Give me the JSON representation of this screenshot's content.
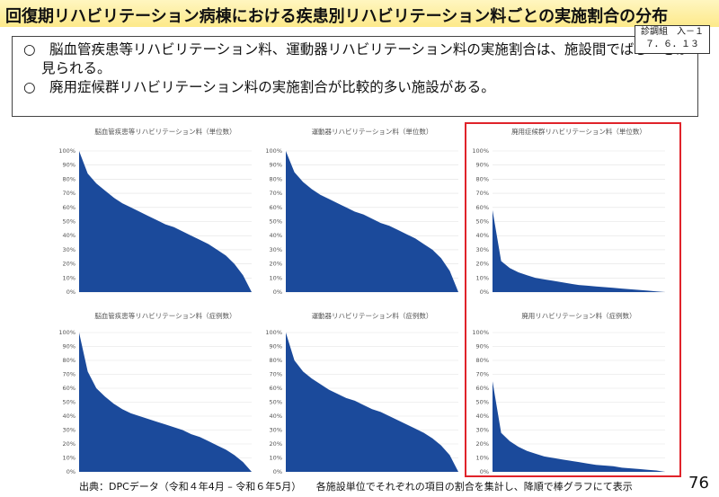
{
  "header": {
    "title": "回復期リハビリテーション病棟における疾患別リハビリテーション料ごとの実施割合の分布",
    "code": "診調組　入－１",
    "date": "７．６．１３"
  },
  "bullets": [
    "○　脳血管疾患等リハビリテーション料、運動器リハビリテーション料の実施割合は、施設間でばらつきが見られる。",
    "○　廃用症候群リハビリテーション料の実施割合が比較的多い施設がある。"
  ],
  "chart_data": [
    {
      "type": "area",
      "title": "脳血管疾患等リハビリテーション料（単位数）",
      "color": "#1b4a9b",
      "grid": true,
      "categories": [
        null,
        null,
        null,
        null,
        null,
        null,
        null,
        null,
        null,
        null,
        null,
        null,
        null,
        null,
        null,
        null,
        null,
        null,
        null,
        null,
        null
      ],
      "values": [
        100,
        84,
        77,
        72,
        67,
        63,
        60,
        57,
        54,
        51,
        48,
        46,
        43,
        40,
        37,
        34,
        30,
        26,
        20,
        12,
        0
      ],
      "ylim": [
        0,
        100
      ],
      "yticks": [
        {
          "value": 0,
          "label": "0%"
        },
        {
          "value": 10,
          "label": "10%"
        },
        {
          "value": 20,
          "label": "20%"
        },
        {
          "value": 30,
          "label": "30%"
        },
        {
          "value": 40,
          "label": "40%"
        },
        {
          "value": 50,
          "label": "50%"
        },
        {
          "value": 60,
          "label": "60%"
        },
        {
          "value": 70,
          "label": "70%"
        },
        {
          "value": 80,
          "label": "80%"
        },
        {
          "value": 90,
          "label": "90%"
        },
        {
          "value": 100,
          "label": "100%"
        }
      ]
    },
    {
      "type": "area",
      "title": "運動器リハビリテーション料（単位数）",
      "color": "#1b4a9b",
      "grid": true,
      "categories": [
        null,
        null,
        null,
        null,
        null,
        null,
        null,
        null,
        null,
        null,
        null,
        null,
        null,
        null,
        null,
        null,
        null,
        null,
        null,
        null,
        null
      ],
      "values": [
        100,
        85,
        78,
        73,
        69,
        66,
        63,
        60,
        57,
        55,
        52,
        49,
        47,
        44,
        41,
        38,
        34,
        30,
        24,
        15,
        0
      ],
      "ylim": [
        0,
        100
      ],
      "yticks": [
        {
          "value": 0,
          "label": "0%"
        },
        {
          "value": 10,
          "label": "10%"
        },
        {
          "value": 20,
          "label": "20%"
        },
        {
          "value": 30,
          "label": "30%"
        },
        {
          "value": 40,
          "label": "40%"
        },
        {
          "value": 50,
          "label": "50%"
        },
        {
          "value": 60,
          "label": "60%"
        },
        {
          "value": 70,
          "label": "70%"
        },
        {
          "value": 80,
          "label": "80%"
        },
        {
          "value": 90,
          "label": "90%"
        },
        {
          "value": 100,
          "label": "100%"
        }
      ]
    },
    {
      "type": "area",
      "title": "廃用症候群リハビリテーション料（単位数）",
      "color": "#1b4a9b",
      "grid": true,
      "categories": [
        null,
        null,
        null,
        null,
        null,
        null,
        null,
        null,
        null,
        null,
        null,
        null,
        null,
        null,
        null,
        null,
        null,
        null,
        null,
        null,
        null
      ],
      "values": [
        58,
        22,
        17,
        14,
        12,
        10,
        9,
        8,
        7,
        6,
        5,
        4.5,
        4,
        3.5,
        3,
        2.5,
        2,
        1.5,
        1,
        0.5,
        0
      ],
      "ylim": [
        0,
        100
      ],
      "yticks": [
        {
          "value": 0,
          "label": "0%"
        },
        {
          "value": 10,
          "label": "10%"
        },
        {
          "value": 20,
          "label": "20%"
        },
        {
          "value": 30,
          "label": "30%"
        },
        {
          "value": 40,
          "label": "40%"
        },
        {
          "value": 50,
          "label": "50%"
        },
        {
          "value": 60,
          "label": "60%"
        },
        {
          "value": 70,
          "label": "70%"
        },
        {
          "value": 80,
          "label": "80%"
        },
        {
          "value": 90,
          "label": "90%"
        },
        {
          "value": 100,
          "label": "100%"
        }
      ]
    },
    {
      "type": "area",
      "title": "脳血管疾患等リハビリテーション料（症例数）",
      "color": "#1b4a9b",
      "grid": true,
      "categories": [
        null,
        null,
        null,
        null,
        null,
        null,
        null,
        null,
        null,
        null,
        null,
        null,
        null,
        null,
        null,
        null,
        null,
        null,
        null,
        null,
        null
      ],
      "values": [
        100,
        72,
        60,
        54,
        49,
        45,
        42,
        40,
        38,
        36,
        34,
        32,
        30,
        27,
        25,
        22,
        19,
        16,
        12,
        7,
        0
      ],
      "ylim": [
        0,
        100
      ],
      "yticks": [
        {
          "value": 0,
          "label": "0%"
        },
        {
          "value": 10,
          "label": "10%"
        },
        {
          "value": 20,
          "label": "20%"
        },
        {
          "value": 30,
          "label": "30%"
        },
        {
          "value": 40,
          "label": "40%"
        },
        {
          "value": 50,
          "label": "50%"
        },
        {
          "value": 60,
          "label": "60%"
        },
        {
          "value": 70,
          "label": "70%"
        },
        {
          "value": 80,
          "label": "80%"
        },
        {
          "value": 90,
          "label": "90%"
        },
        {
          "value": 100,
          "label": "100%"
        }
      ]
    },
    {
      "type": "area",
      "title": "運動器リハビリテーション料（症例数）",
      "color": "#1b4a9b",
      "grid": true,
      "categories": [
        null,
        null,
        null,
        null,
        null,
        null,
        null,
        null,
        null,
        null,
        null,
        null,
        null,
        null,
        null,
        null,
        null,
        null,
        null,
        null,
        null
      ],
      "values": [
        100,
        80,
        72,
        67,
        63,
        59,
        56,
        53,
        51,
        48,
        45,
        43,
        40,
        37,
        34,
        31,
        28,
        24,
        19,
        12,
        0
      ],
      "ylim": [
        0,
        100
      ],
      "yticks": [
        {
          "value": 0,
          "label": "0%"
        },
        {
          "value": 10,
          "label": "10%"
        },
        {
          "value": 20,
          "label": "20%"
        },
        {
          "value": 30,
          "label": "30%"
        },
        {
          "value": 40,
          "label": "40%"
        },
        {
          "value": 50,
          "label": "50%"
        },
        {
          "value": 60,
          "label": "60%"
        },
        {
          "value": 70,
          "label": "70%"
        },
        {
          "value": 80,
          "label": "80%"
        },
        {
          "value": 90,
          "label": "90%"
        },
        {
          "value": 100,
          "label": "100%"
        }
      ]
    },
    {
      "type": "area",
      "title": "廃用リハビリテーション料（症例数）",
      "color": "#1b4a9b",
      "grid": true,
      "categories": [
        null,
        null,
        null,
        null,
        null,
        null,
        null,
        null,
        null,
        null,
        null,
        null,
        null,
        null,
        null,
        null,
        null,
        null,
        null,
        null,
        null
      ],
      "values": [
        65,
        28,
        22,
        18,
        15,
        13,
        11,
        10,
        9,
        8,
        7,
        6,
        5,
        4.5,
        4,
        3,
        2.5,
        2,
        1.5,
        1,
        0
      ],
      "ylim": [
        0,
        100
      ],
      "yticks": [
        {
          "value": 0,
          "label": "0%"
        },
        {
          "value": 10,
          "label": "10%"
        },
        {
          "value": 20,
          "label": "20%"
        },
        {
          "value": 30,
          "label": "30%"
        },
        {
          "value": 40,
          "label": "40%"
        },
        {
          "value": 50,
          "label": "50%"
        },
        {
          "value": 60,
          "label": "60%"
        },
        {
          "value": 70,
          "label": "70%"
        },
        {
          "value": 80,
          "label": "80%"
        },
        {
          "value": 90,
          "label": "90%"
        },
        {
          "value": 100,
          "label": "100%"
        }
      ]
    }
  ],
  "footer": {
    "source": "出典：DPCデータ（令和４年4月 – 令和６年5月）　　各施設単位でそれぞれの項目の割合を集計し、降順で棒グラフにて表示",
    "page": "76"
  }
}
